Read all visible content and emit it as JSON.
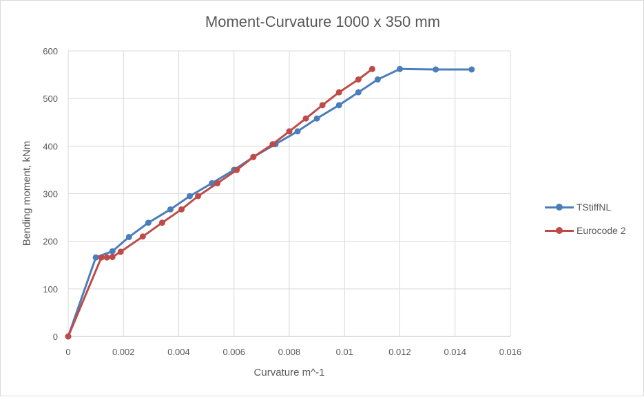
{
  "chart_data": {
    "type": "line",
    "title": "Moment-Curvature 1000 x 350 mm",
    "xlabel": "Curvature m^-1",
    "ylabel": "Bending moment, kNm",
    "xlim": [
      0,
      0.016
    ],
    "ylim": [
      0,
      600
    ],
    "xticks": [
      "0",
      "0.002",
      "0.004",
      "0.006",
      "0.008",
      "0.01",
      "0.012",
      "0.014",
      "0.016"
    ],
    "yticks": [
      "0",
      "100",
      "200",
      "300",
      "400",
      "500",
      "600"
    ],
    "grid": true,
    "legend": "right",
    "series": [
      {
        "name": "TStiffNL",
        "color": "#4a7ebb",
        "points": [
          [
            0,
            0
          ],
          [
            0.001,
            166
          ],
          [
            0.0016,
            179
          ],
          [
            0.0022,
            209
          ],
          [
            0.0029,
            239
          ],
          [
            0.0037,
            267
          ],
          [
            0.0044,
            295
          ],
          [
            0.0052,
            322
          ],
          [
            0.006,
            350
          ],
          [
            0.0067,
            377
          ],
          [
            0.0075,
            404
          ],
          [
            0.0083,
            431
          ],
          [
            0.009,
            458
          ],
          [
            0.0098,
            486
          ],
          [
            0.0105,
            513
          ],
          [
            0.0112,
            540
          ],
          [
            0.012,
            562
          ],
          [
            0.0133,
            561
          ],
          [
            0.0146,
            561
          ]
        ]
      },
      {
        "name": "Eurocode 2",
        "color": "#be4b48",
        "points": [
          [
            0,
            0
          ],
          [
            0.0012,
            166
          ],
          [
            0.0014,
            166
          ],
          [
            0.0016,
            167
          ],
          [
            0.0019,
            178
          ],
          [
            0.0027,
            210
          ],
          [
            0.0034,
            239
          ],
          [
            0.0041,
            267
          ],
          [
            0.0047,
            295
          ],
          [
            0.0054,
            322
          ],
          [
            0.0061,
            350
          ],
          [
            0.0067,
            377
          ],
          [
            0.0074,
            404
          ],
          [
            0.008,
            431
          ],
          [
            0.0086,
            458
          ],
          [
            0.0092,
            486
          ],
          [
            0.0098,
            513
          ],
          [
            0.0105,
            540
          ],
          [
            0.011,
            562
          ]
        ]
      }
    ]
  }
}
